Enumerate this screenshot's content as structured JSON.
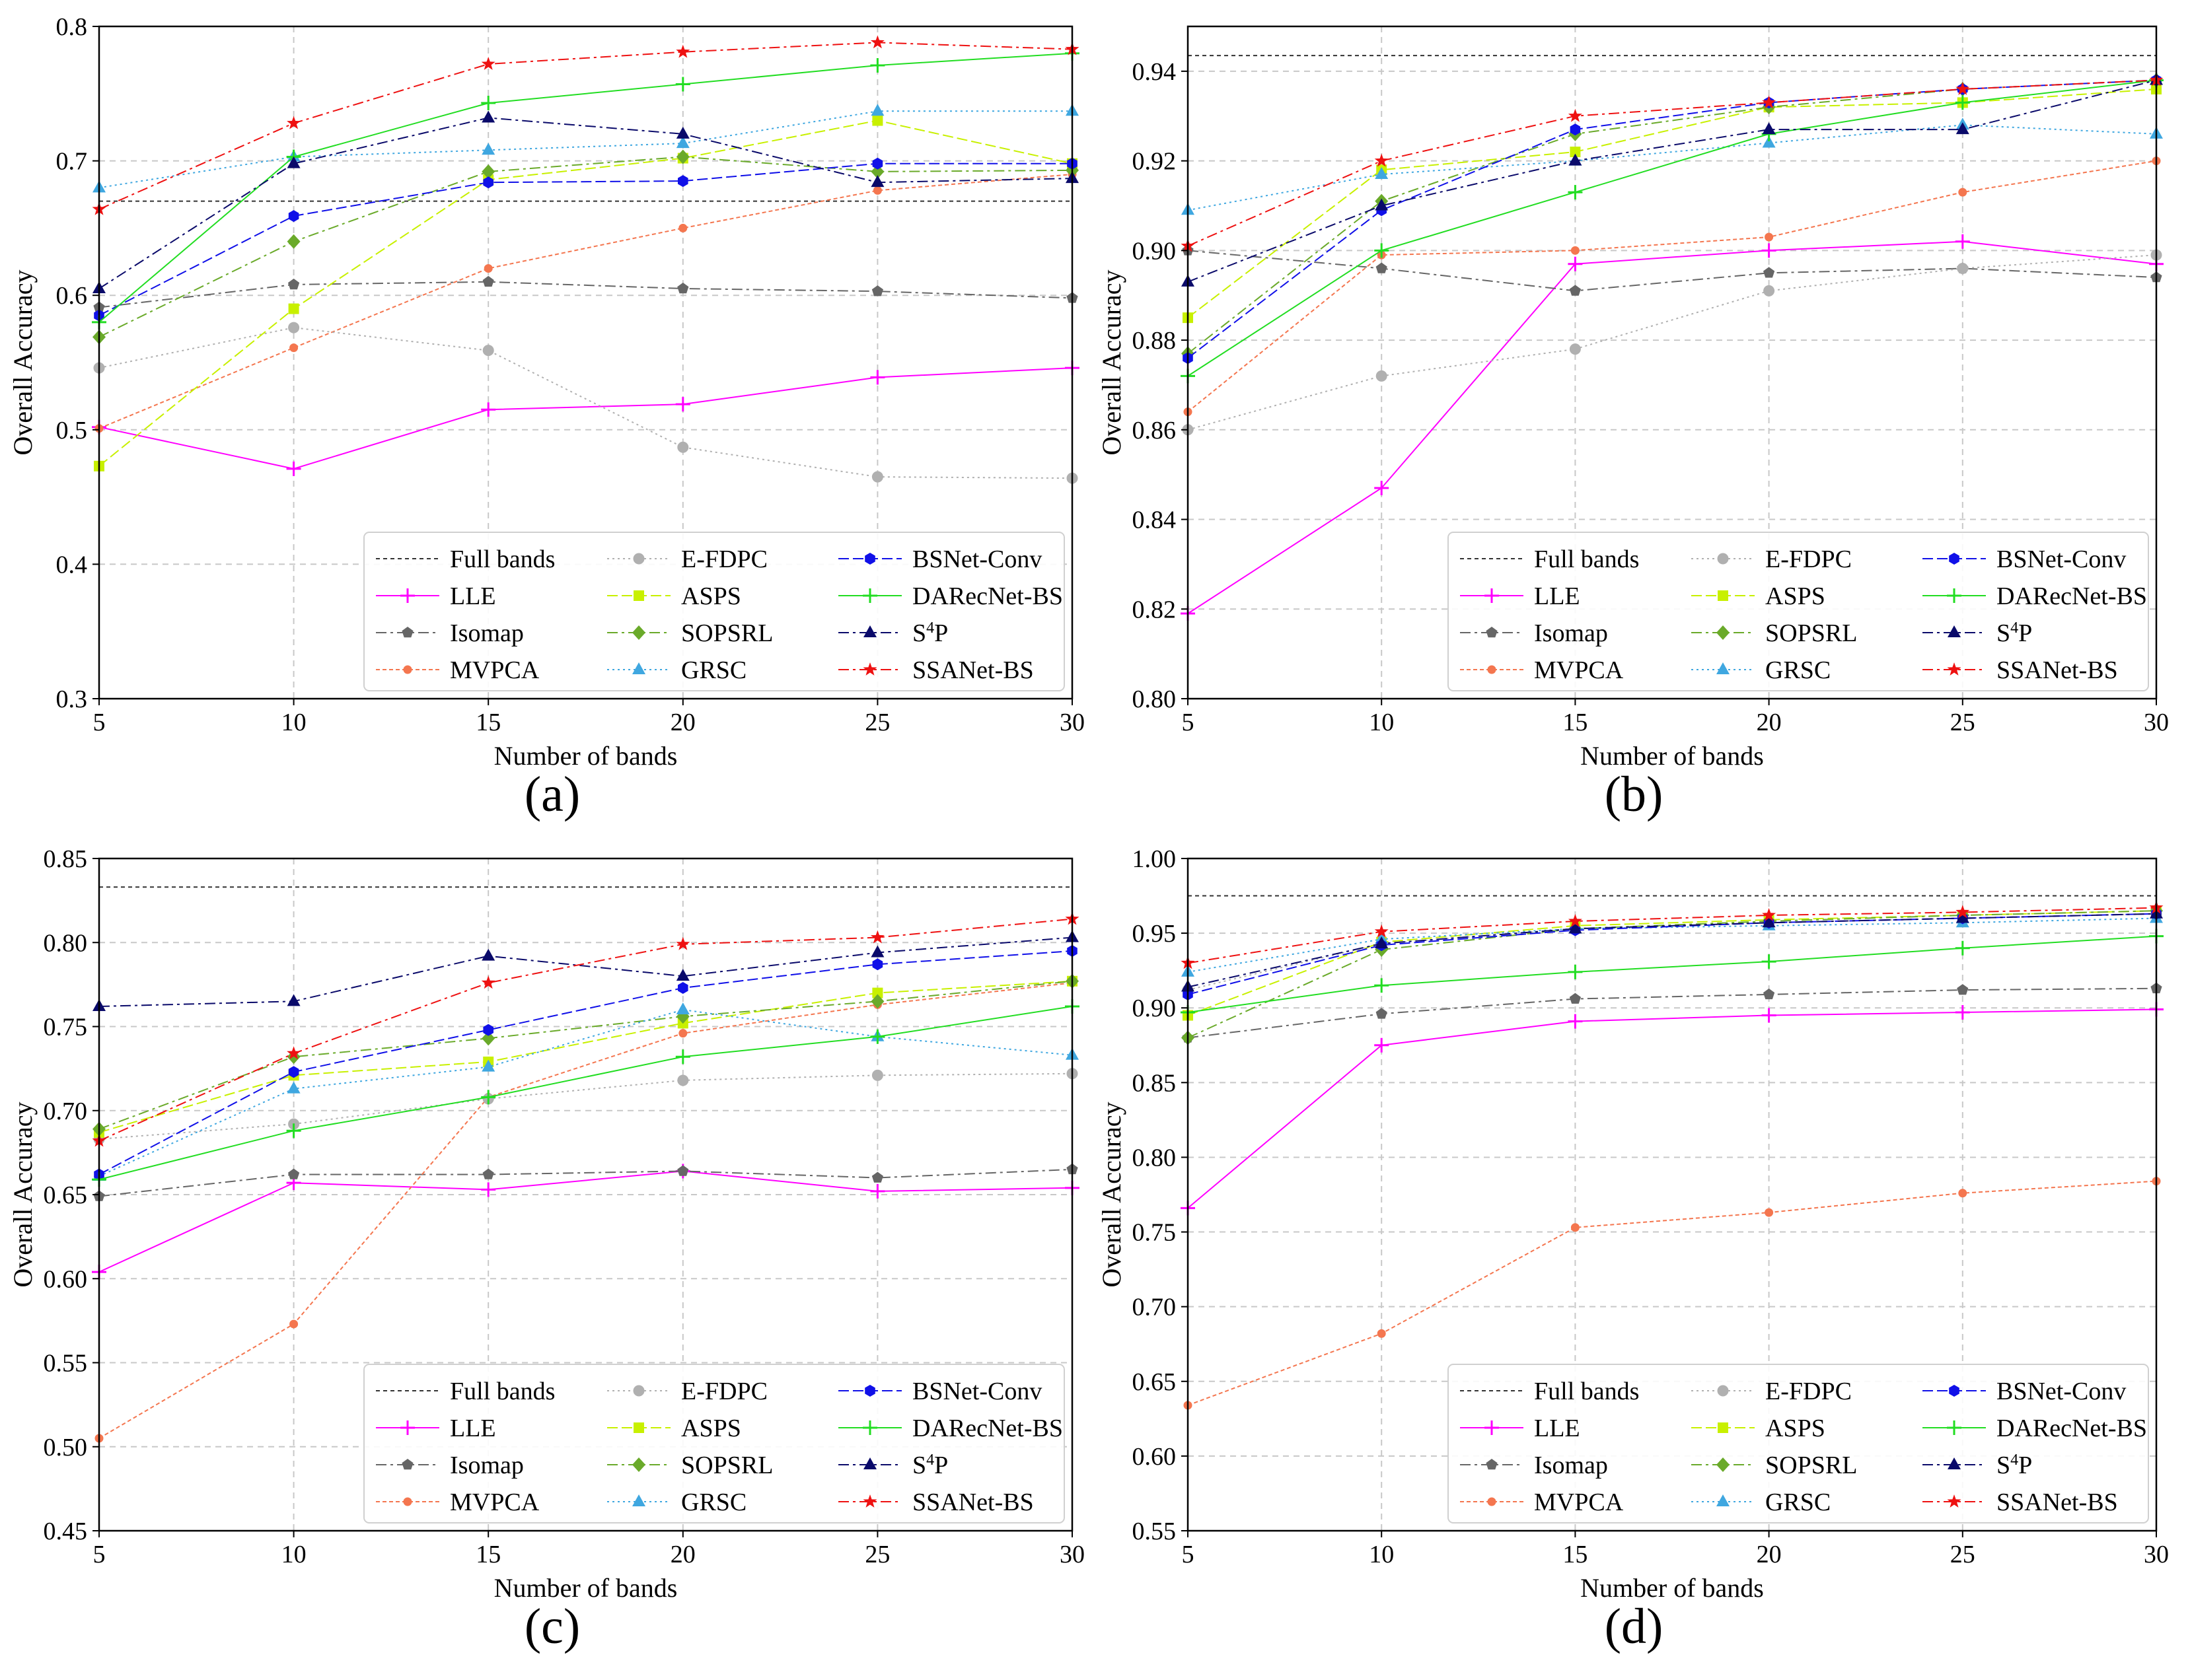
{
  "legend_order": [
    "Full bands",
    "E-FDPC",
    "BSNet-Conv",
    "LLE",
    "ASPS",
    "DARecNet-BS",
    "Isomap",
    "SOPSRL",
    "S4P",
    "MVPCA",
    "GRSC",
    "SSANet-BS"
  ],
  "styles": {
    "Full bands": {
      "color": "#333333",
      "dash": "6,5",
      "marker": "none"
    },
    "LLE": {
      "color": "#ff00ff",
      "dash": "none",
      "marker": "plus"
    },
    "Isomap": {
      "color": "#666666",
      "dash": "16,6,4,6",
      "marker": "pentagon"
    },
    "MVPCA": {
      "color": "#f4764f",
      "dash": "6,4",
      "marker": "circle-small"
    },
    "E-FDPC": {
      "color": "#b0b0b0",
      "dash": "3,5",
      "marker": "circle"
    },
    "ASPS": {
      "color": "#c8f000",
      "dash": "16,6",
      "marker": "square"
    },
    "SOPSRL": {
      "color": "#6aaa2a",
      "dash": "16,6,4,6",
      "marker": "diamond"
    },
    "GRSC": {
      "color": "#3fa7e0",
      "dash": "3,5",
      "marker": "triangle"
    },
    "BSNet-Conv": {
      "color": "#1010e8",
      "dash": "16,6",
      "marker": "hexagon"
    },
    "DARecNet-BS": {
      "color": "#22dd22",
      "dash": "none",
      "marker": "plus"
    },
    "S4P": {
      "color": "#0a0a6a",
      "dash": "16,6,4,6",
      "marker": "triangle"
    },
    "SSANet-BS": {
      "color": "#ee1111",
      "dash": "16,6,4,6",
      "marker": "star"
    }
  },
  "labels": {
    "sup4": "4"
  },
  "chart_data": [
    {
      "id": "a",
      "caption": "(a)",
      "type": "line",
      "xlabel": "Number of bands",
      "ylabel": "Overall Accuracy",
      "x": [
        5,
        10,
        15,
        20,
        25,
        30
      ],
      "xlim": [
        5,
        30
      ],
      "ylim": [
        0.3,
        0.8
      ],
      "xticks": [
        "5",
        "10",
        "15",
        "20",
        "25",
        "30"
      ],
      "yticks": [
        "0.3",
        "0.4",
        "0.5",
        "0.6",
        "0.7",
        "0.8"
      ],
      "grid": true,
      "legend_position": "bottom-right",
      "full_bands": 0.67,
      "series": [
        {
          "name": "LLE",
          "values": [
            0.502,
            0.471,
            0.515,
            0.519,
            0.539,
            0.546
          ]
        },
        {
          "name": "Isomap",
          "values": [
            0.591,
            0.608,
            0.61,
            0.605,
            0.603,
            0.598
          ]
        },
        {
          "name": "MVPCA",
          "values": [
            0.501,
            0.561,
            0.62,
            0.65,
            0.678,
            0.69
          ]
        },
        {
          "name": "E-FDPC",
          "values": [
            0.546,
            0.576,
            0.559,
            0.487,
            0.465,
            0.464
          ]
        },
        {
          "name": "ASPS",
          "values": [
            0.473,
            0.59,
            0.686,
            0.702,
            0.73,
            0.698
          ]
        },
        {
          "name": "SOPSRL",
          "values": [
            0.569,
            0.64,
            0.692,
            0.703,
            0.692,
            0.693
          ]
        },
        {
          "name": "GRSC",
          "values": [
            0.68,
            0.703,
            0.708,
            0.713,
            0.737,
            0.737
          ]
        },
        {
          "name": "BSNet-Conv",
          "values": [
            0.585,
            0.659,
            0.684,
            0.685,
            0.698,
            0.698
          ]
        },
        {
          "name": "DARecNet-BS",
          "values": [
            0.58,
            0.703,
            0.743,
            0.757,
            0.771,
            0.78
          ]
        },
        {
          "name": "S4P",
          "values": [
            0.605,
            0.698,
            0.732,
            0.72,
            0.684,
            0.687
          ]
        },
        {
          "name": "SSANet-BS",
          "values": [
            0.664,
            0.728,
            0.772,
            0.781,
            0.788,
            0.783
          ]
        }
      ]
    },
    {
      "id": "b",
      "caption": "(b)",
      "type": "line",
      "xlabel": "Number of bands",
      "ylabel": "Overall Accuracy",
      "x": [
        5,
        10,
        15,
        20,
        25,
        30
      ],
      "xlim": [
        5,
        30
      ],
      "ylim": [
        0.8,
        0.95
      ],
      "xticks": [
        "5",
        "10",
        "15",
        "20",
        "25",
        "30"
      ],
      "yticks": [
        "0.80",
        "0.82",
        "0.84",
        "0.86",
        "0.88",
        "0.90",
        "0.92",
        "0.94"
      ],
      "grid": true,
      "legend_position": "bottom-right",
      "full_bands": 0.9435,
      "series": [
        {
          "name": "LLE",
          "values": [
            0.819,
            0.847,
            0.897,
            0.9,
            0.902,
            0.897
          ]
        },
        {
          "name": "Isomap",
          "values": [
            0.9,
            0.896,
            0.891,
            0.895,
            0.896,
            0.894
          ]
        },
        {
          "name": "MVPCA",
          "values": [
            0.864,
            0.899,
            0.9,
            0.903,
            0.913,
            0.92
          ]
        },
        {
          "name": "E-FDPC",
          "values": [
            0.86,
            0.872,
            0.878,
            0.891,
            0.896,
            0.899
          ]
        },
        {
          "name": "ASPS",
          "values": [
            0.885,
            0.918,
            0.922,
            0.932,
            0.933,
            0.936
          ]
        },
        {
          "name": "SOPSRL",
          "values": [
            0.877,
            0.911,
            0.926,
            0.932,
            0.936,
            0.938
          ]
        },
        {
          "name": "GRSC",
          "values": [
            0.909,
            0.917,
            0.92,
            0.924,
            0.928,
            0.926
          ]
        },
        {
          "name": "BSNet-Conv",
          "values": [
            0.876,
            0.909,
            0.927,
            0.933,
            0.936,
            0.938
          ]
        },
        {
          "name": "DARecNet-BS",
          "values": [
            0.872,
            0.9,
            0.913,
            0.926,
            0.933,
            0.938
          ]
        },
        {
          "name": "S4P",
          "values": [
            0.893,
            0.91,
            0.92,
            0.927,
            0.927,
            0.938
          ]
        },
        {
          "name": "SSANet-BS",
          "values": [
            0.901,
            0.92,
            0.93,
            0.933,
            0.936,
            0.938
          ]
        }
      ]
    },
    {
      "id": "c",
      "caption": "(c)",
      "type": "line",
      "xlabel": "Number of bands",
      "ylabel": "Overall Accuracy",
      "x": [
        5,
        10,
        15,
        20,
        25,
        30
      ],
      "xlim": [
        5,
        30
      ],
      "ylim": [
        0.45,
        0.85
      ],
      "xticks": [
        "5",
        "10",
        "15",
        "20",
        "25",
        "30"
      ],
      "yticks": [
        "0.45",
        "0.50",
        "0.55",
        "0.60",
        "0.65",
        "0.70",
        "0.75",
        "0.80",
        "0.85"
      ],
      "grid": true,
      "legend_position": "bottom-right",
      "full_bands": 0.833,
      "series": [
        {
          "name": "LLE",
          "values": [
            0.604,
            0.657,
            0.653,
            0.664,
            0.652,
            0.654
          ]
        },
        {
          "name": "Isomap",
          "values": [
            0.649,
            0.662,
            0.662,
            0.664,
            0.66,
            0.665
          ]
        },
        {
          "name": "MVPCA",
          "values": [
            0.505,
            0.573,
            0.708,
            0.746,
            0.763,
            0.776
          ]
        },
        {
          "name": "E-FDPC",
          "values": [
            0.683,
            0.692,
            0.707,
            0.718,
            0.721,
            0.722
          ]
        },
        {
          "name": "ASPS",
          "values": [
            0.687,
            0.721,
            0.729,
            0.752,
            0.77,
            0.777
          ]
        },
        {
          "name": "SOPSRL",
          "values": [
            0.689,
            0.732,
            0.743,
            0.756,
            0.765,
            0.777
          ]
        },
        {
          "name": "GRSC",
          "values": [
            0.661,
            0.713,
            0.726,
            0.76,
            0.744,
            0.733
          ]
        },
        {
          "name": "BSNet-Conv",
          "values": [
            0.662,
            0.723,
            0.748,
            0.773,
            0.787,
            0.795
          ]
        },
        {
          "name": "DARecNet-BS",
          "values": [
            0.659,
            0.688,
            0.708,
            0.732,
            0.744,
            0.762
          ]
        },
        {
          "name": "S4P",
          "values": [
            0.762,
            0.765,
            0.792,
            0.78,
            0.794,
            0.803
          ]
        },
        {
          "name": "SSANet-BS",
          "values": [
            0.682,
            0.734,
            0.776,
            0.799,
            0.803,
            0.814
          ]
        }
      ]
    },
    {
      "id": "d",
      "caption": "(d)",
      "type": "line",
      "xlabel": "Number of bands",
      "ylabel": "Overall Accuracy",
      "x": [
        5,
        10,
        15,
        20,
        25,
        30
      ],
      "xlim": [
        5,
        30
      ],
      "ylim": [
        0.55,
        1.0
      ],
      "xticks": [
        "5",
        "10",
        "15",
        "20",
        "25",
        "30"
      ],
      "yticks": [
        "0.55",
        "0.60",
        "0.65",
        "0.70",
        "0.75",
        "0.80",
        "0.85",
        "0.90",
        "0.95",
        "1.00"
      ],
      "grid": true,
      "legend_position": "bottom-right",
      "full_bands": 0.975,
      "series": [
        {
          "name": "LLE",
          "values": [
            0.766,
            0.875,
            0.891,
            0.895,
            0.897,
            0.899
          ]
        },
        {
          "name": "Isomap",
          "values": [
            0.88,
            0.896,
            0.906,
            0.909,
            0.912,
            0.913
          ]
        },
        {
          "name": "MVPCA",
          "values": [
            0.634,
            0.682,
            0.753,
            0.763,
            0.776,
            0.784
          ]
        },
        {
          "name": "E-FDPC",
          "values": [
            0.912,
            0.943,
            0.953,
            0.957,
            0.96,
            0.963
          ]
        },
        {
          "name": "ASPS",
          "values": [
            0.895,
            0.944,
            0.955,
            0.959,
            0.962,
            0.965
          ]
        },
        {
          "name": "SOPSRL",
          "values": [
            0.88,
            0.939,
            0.953,
            0.958,
            0.962,
            0.965
          ]
        },
        {
          "name": "GRSC",
          "values": [
            0.924,
            0.946,
            0.953,
            0.955,
            0.957,
            0.96
          ]
        },
        {
          "name": "BSNet-Conv",
          "values": [
            0.909,
            0.942,
            0.952,
            0.957,
            0.96,
            0.963
          ]
        },
        {
          "name": "DARecNet-BS",
          "values": [
            0.897,
            0.915,
            0.924,
            0.931,
            0.94,
            0.948
          ]
        },
        {
          "name": "S4P",
          "values": [
            0.914,
            0.943,
            0.953,
            0.957,
            0.96,
            0.963
          ]
        },
        {
          "name": "SSANet-BS",
          "values": [
            0.93,
            0.951,
            0.958,
            0.962,
            0.964,
            0.967
          ]
        }
      ]
    }
  ]
}
